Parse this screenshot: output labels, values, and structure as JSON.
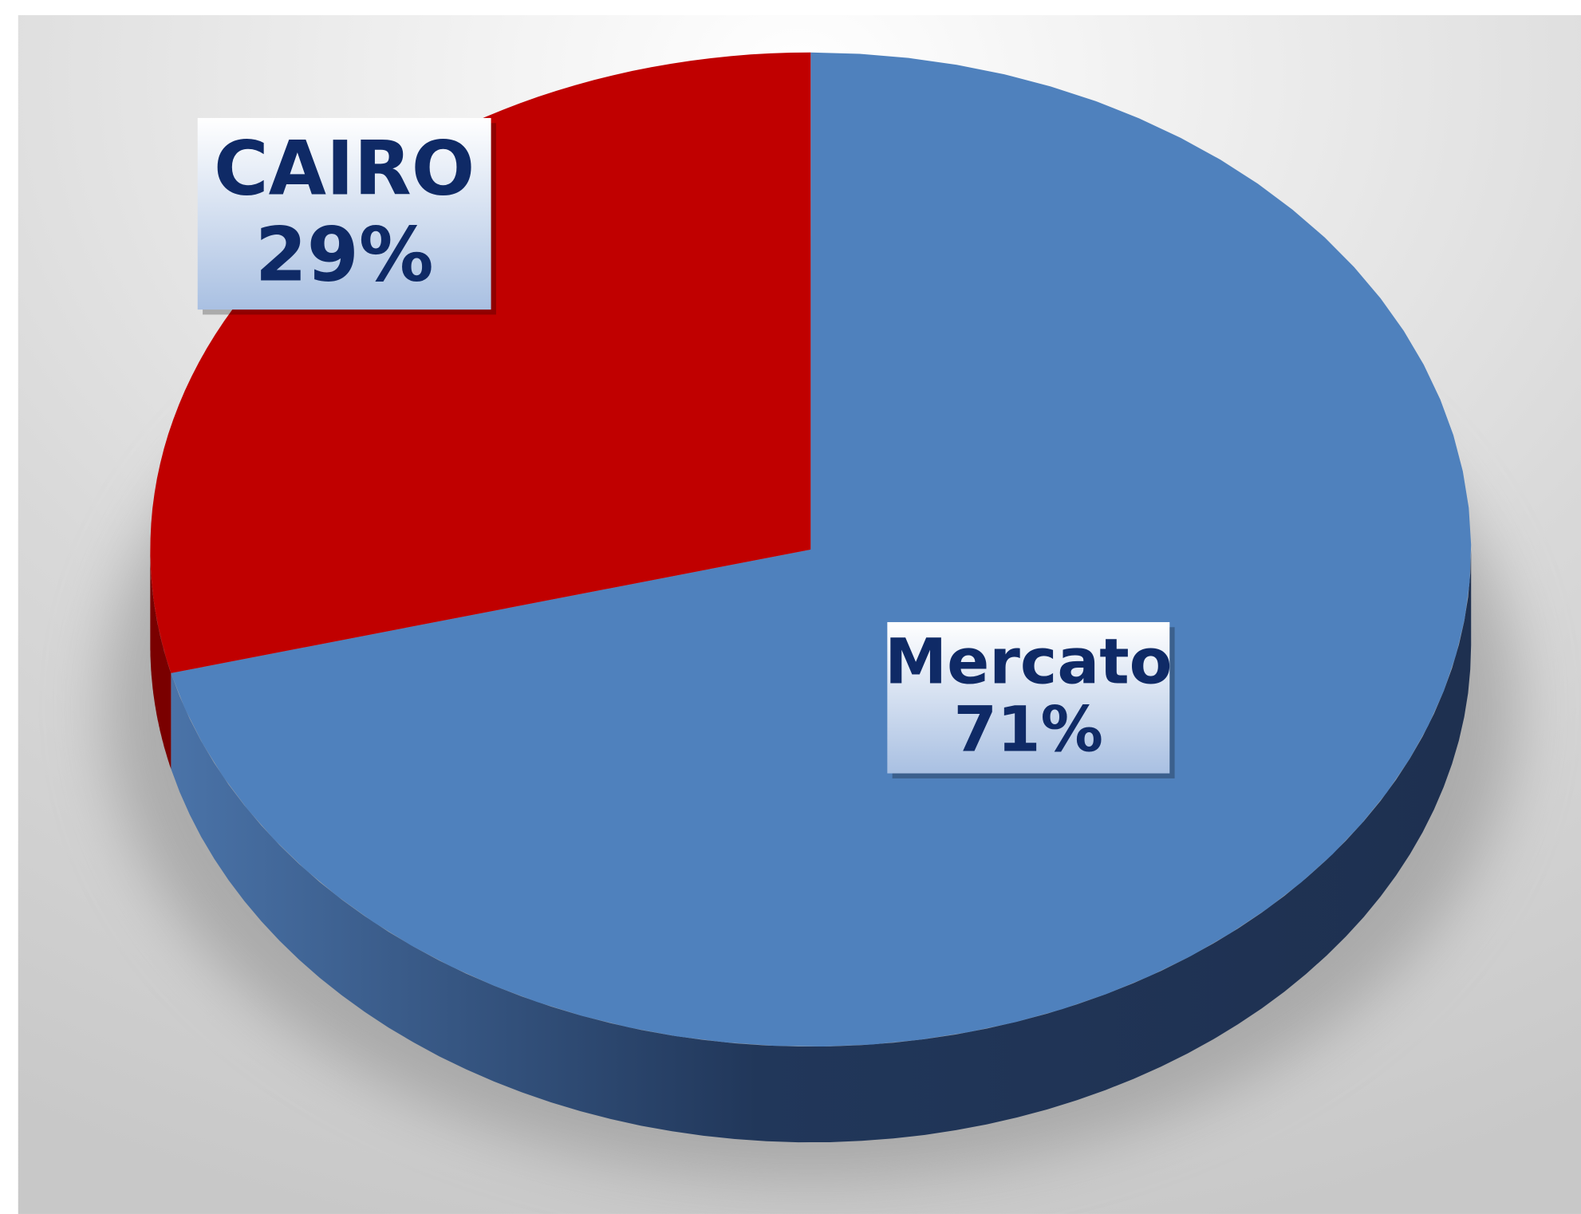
{
  "chart_data": {
    "type": "pie",
    "categories": [
      "CAIRO",
      "Mercato"
    ],
    "values": [
      29,
      71
    ],
    "value_labels": [
      "29%",
      "71%"
    ],
    "colors": [
      "#c00000",
      "#4f81bd"
    ]
  }
}
